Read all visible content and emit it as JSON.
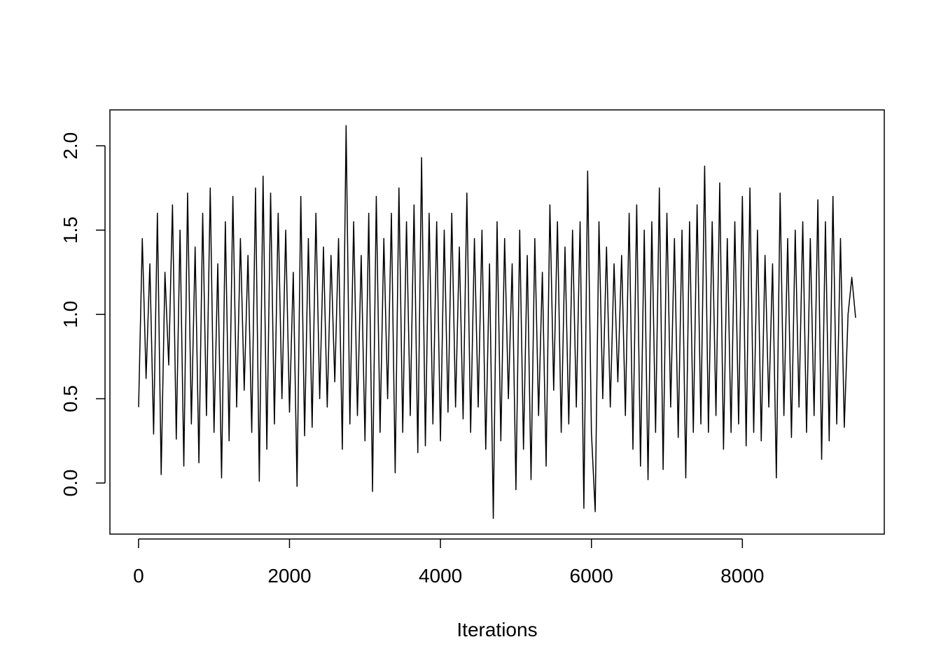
{
  "chart_data": {
    "type": "line",
    "xlabel": "Iterations",
    "x": [
      1,
      50,
      100,
      150,
      200,
      250,
      300,
      350,
      400,
      450,
      500,
      550,
      600,
      650,
      700,
      750,
      800,
      850,
      900,
      950,
      1000,
      1050,
      1100,
      1150,
      1200,
      1250,
      1300,
      1350,
      1400,
      1450,
      1500,
      1550,
      1600,
      1650,
      1700,
      1750,
      1800,
      1850,
      1900,
      1950,
      2000,
      2050,
      2100,
      2150,
      2200,
      2250,
      2300,
      2350,
      2400,
      2450,
      2500,
      2550,
      2600,
      2650,
      2700,
      2750,
      2800,
      2850,
      2900,
      2950,
      3000,
      3050,
      3100,
      3150,
      3200,
      3250,
      3300,
      3350,
      3400,
      3450,
      3500,
      3550,
      3600,
      3650,
      3700,
      3750,
      3800,
      3850,
      3900,
      3950,
      4000,
      4050,
      4100,
      4150,
      4200,
      4250,
      4300,
      4350,
      4400,
      4450,
      4500,
      4550,
      4600,
      4650,
      4700,
      4750,
      4800,
      4850,
      4900,
      4950,
      5000,
      5050,
      5100,
      5150,
      5200,
      5250,
      5300,
      5350,
      5400,
      5450,
      5500,
      5550,
      5600,
      5650,
      5700,
      5750,
      5800,
      5850,
      5900,
      5950,
      6000,
      6050,
      6100,
      6150,
      6200,
      6250,
      6300,
      6350,
      6400,
      6450,
      6500,
      6550,
      6600,
      6650,
      6700,
      6750,
      6800,
      6850,
      6900,
      6950,
      7000,
      7050,
      7100,
      7150,
      7200,
      7250,
      7300,
      7350,
      7400,
      7450,
      7500,
      7550,
      7600,
      7650,
      7700,
      7750,
      7800,
      7850,
      7900,
      7950,
      8000,
      8050,
      8100,
      8150,
      8200,
      8250,
      8300,
      8350,
      8400,
      8450,
      8500,
      8550,
      8600,
      8650,
      8700,
      8750,
      8800,
      8850,
      8900,
      8950,
      9000,
      9050,
      9100,
      9150,
      9200,
      9250,
      9300,
      9350,
      9400,
      9450,
      9500
    ],
    "values": [
      0.45,
      1.45,
      0.62,
      1.3,
      0.29,
      1.6,
      0.05,
      1.25,
      0.7,
      1.65,
      0.26,
      1.5,
      0.1,
      1.72,
      0.35,
      1.4,
      0.12,
      1.6,
      0.4,
      1.75,
      0.3,
      1.3,
      0.03,
      1.55,
      0.25,
      1.7,
      0.45,
      1.45,
      0.55,
      1.35,
      0.3,
      1.75,
      0.01,
      1.82,
      0.2,
      1.72,
      0.35,
      1.6,
      0.5,
      1.5,
      0.42,
      1.25,
      -0.02,
      1.7,
      0.28,
      1.45,
      0.33,
      1.6,
      0.5,
      1.4,
      0.45,
      1.35,
      0.6,
      1.45,
      0.2,
      2.12,
      0.35,
      1.55,
      0.4,
      1.35,
      0.25,
      1.6,
      -0.05,
      1.7,
      0.3,
      1.45,
      0.5,
      1.6,
      0.06,
      1.75,
      0.3,
      1.55,
      0.4,
      1.65,
      0.18,
      1.93,
      0.22,
      1.6,
      0.35,
      1.55,
      0.25,
      1.5,
      0.42,
      1.6,
      0.45,
      1.4,
      0.38,
      1.72,
      0.3,
      1.45,
      0.45,
      1.5,
      0.2,
      1.3,
      -0.21,
      1.55,
      0.25,
      1.45,
      0.5,
      1.3,
      -0.04,
      1.5,
      0.2,
      1.35,
      0.02,
      1.45,
      0.4,
      1.25,
      0.1,
      1.65,
      0.55,
      1.55,
      0.3,
      1.4,
      0.35,
      1.5,
      0.45,
      1.55,
      -0.15,
      1.85,
      0.3,
      -0.17,
      1.55,
      0.5,
      1.4,
      0.45,
      1.3,
      0.6,
      1.35,
      0.4,
      1.6,
      0.2,
      1.65,
      0.1,
      1.5,
      0.02,
      1.55,
      0.3,
      1.75,
      0.08,
      1.6,
      0.45,
      1.45,
      0.27,
      1.5,
      0.03,
      1.55,
      0.3,
      1.65,
      0.35,
      1.88,
      0.3,
      1.55,
      0.4,
      1.78,
      0.2,
      1.45,
      0.3,
      1.55,
      0.35,
      1.7,
      0.22,
      1.75,
      0.3,
      1.5,
      0.25,
      1.35,
      0.45,
      1.3,
      0.03,
      1.72,
      0.4,
      1.45,
      0.27,
      1.5,
      0.45,
      1.55,
      0.3,
      1.45,
      0.4,
      1.68,
      0.14,
      1.55,
      0.25,
      1.7,
      0.35,
      1.45,
      0.33,
      1.0,
      1.22,
      0.98
    ],
    "color": "#000000",
    "xlim": [
      -379,
      9880
    ],
    "xticks": [
      0,
      2000,
      4000,
      6000,
      8000
    ],
    "ylim": [
      -0.303,
      2.213
    ],
    "yticks": [
      {
        "value": 0,
        "label": "0.0"
      },
      {
        "value": 0.5,
        "label": "0.5"
      },
      {
        "value": 1,
        "label": "1.0"
      },
      {
        "value": 1.5,
        "label": "1.5"
      },
      {
        "value": 2,
        "label": "2.0"
      }
    ],
    "grid": false
  }
}
